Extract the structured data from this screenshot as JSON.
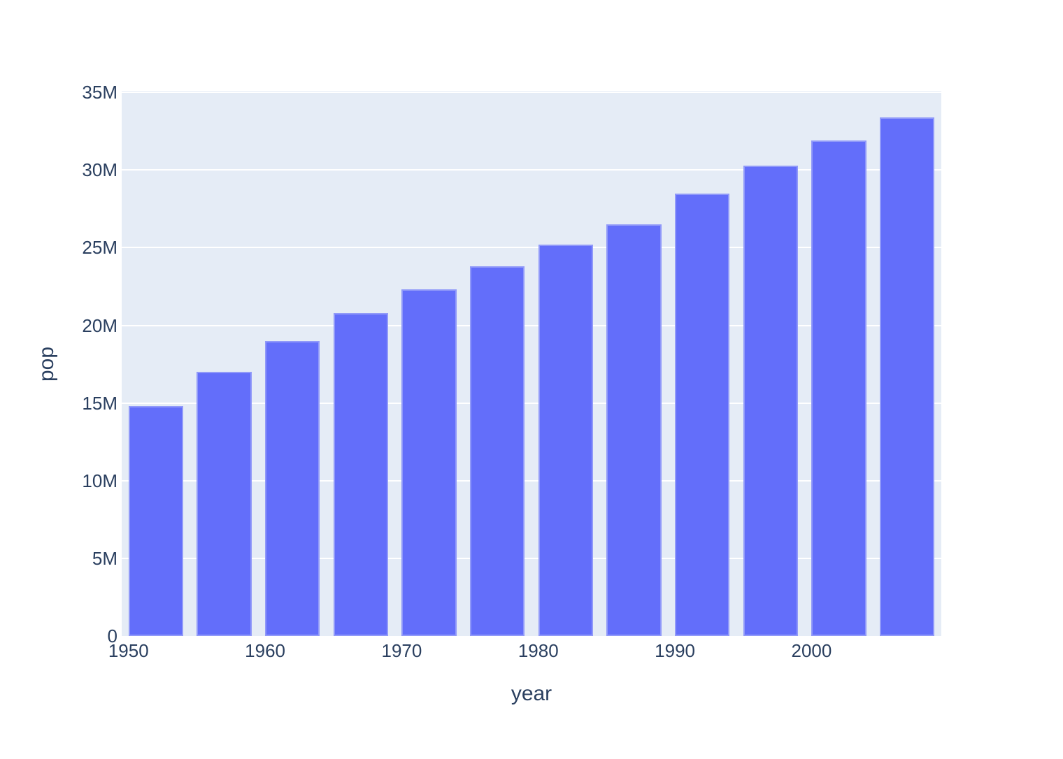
{
  "chart_data": {
    "type": "bar",
    "title": "",
    "xlabel": "year",
    "ylabel": "pop",
    "x": [
      1952,
      1957,
      1962,
      1967,
      1972,
      1977,
      1982,
      1987,
      1992,
      1997,
      2002,
      2007
    ],
    "values": [
      14800000,
      17000000,
      19000000,
      20800000,
      22300000,
      23800000,
      25200000,
      26500000,
      28500000,
      30300000,
      31900000,
      33400000
    ],
    "series_name": "pop",
    "bar_width_years": 4,
    "x_range": [
      1949.5,
      2009.5
    ],
    "y_range": [
      0,
      35100000
    ],
    "x_ticks": [
      {
        "value": 1950,
        "label": "1950"
      },
      {
        "value": 1960,
        "label": "1960"
      },
      {
        "value": 1970,
        "label": "1970"
      },
      {
        "value": 1980,
        "label": "1980"
      },
      {
        "value": 1990,
        "label": "1990"
      },
      {
        "value": 2000,
        "label": "2000"
      }
    ],
    "y_ticks": [
      {
        "value": 0,
        "label": "0"
      },
      {
        "value": 5000000,
        "label": "5M"
      },
      {
        "value": 10000000,
        "label": "10M"
      },
      {
        "value": 15000000,
        "label": "15M"
      },
      {
        "value": 20000000,
        "label": "20M"
      },
      {
        "value": 25000000,
        "label": "25M"
      },
      {
        "value": 30000000,
        "label": "30M"
      },
      {
        "value": 35000000,
        "label": "35M"
      }
    ],
    "legend": "none",
    "grid": "horizontal",
    "colors": {
      "bar": "#636EFA",
      "plot_background": "#E5ECF6",
      "gridline": "#FFFFFF",
      "text": "#2A3F5F",
      "page_background": "#FFFFFF"
    }
  }
}
